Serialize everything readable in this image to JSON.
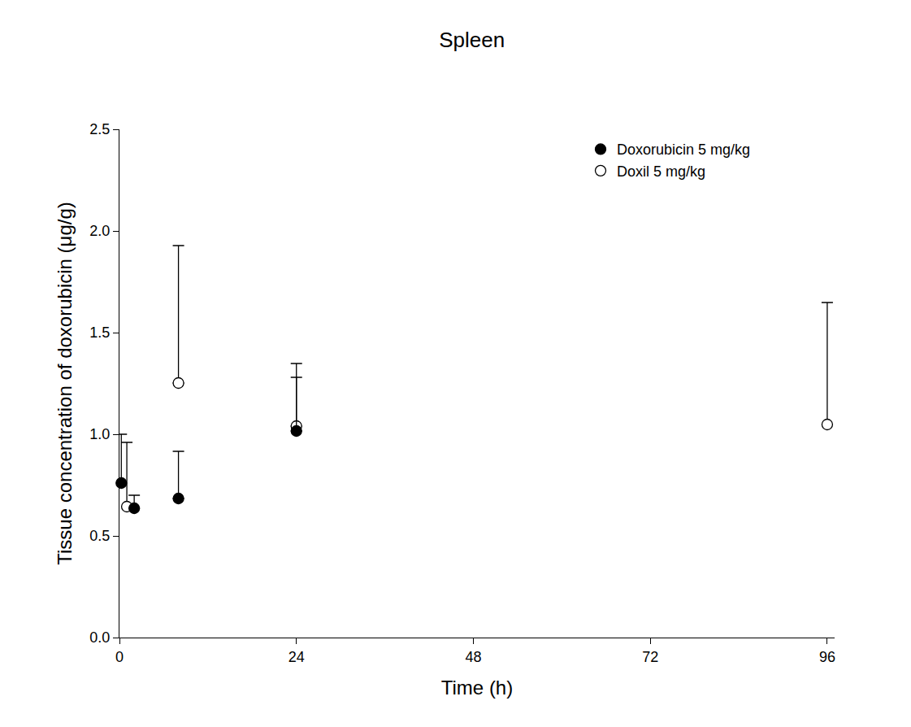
{
  "chart_data": {
    "type": "scatter",
    "title": "Spleen",
    "x_label": "Time (h)",
    "y_label": "Tissue concentration of doxorubicin (μg/g)",
    "xlim": [
      0,
      97
    ],
    "xticks": [
      0,
      24,
      48,
      72,
      96
    ],
    "ylim": [
      0,
      2.5
    ],
    "yticks": [
      {
        "value": 0,
        "label": "0.0"
      },
      0.5,
      {
        "value": 1,
        "label": "1.0"
      },
      1.5,
      {
        "value": 2,
        "label": "2.0"
      },
      2.5
    ],
    "grid": false,
    "legend": "top right",
    "series": [
      {
        "name": "Doxorubicin 5 mg/kg",
        "color": "#000000",
        "marker": "filled",
        "x": [
          0.25,
          2,
          8,
          24
        ],
        "values": [
          0.76,
          0.636,
          0.684,
          1.016
        ],
        "error": [
          0.24,
          0.064,
          0.232,
          0.264
        ]
      },
      {
        "name": "Doxil 5 mg/kg",
        "color": "#000000",
        "marker": "open",
        "x": [
          1,
          8,
          24,
          96
        ],
        "values": [
          0.644,
          1.252,
          1.04,
          1.048
        ],
        "error": [
          0.316,
          0.676,
          0.308,
          0.6
        ]
      }
    ]
  }
}
